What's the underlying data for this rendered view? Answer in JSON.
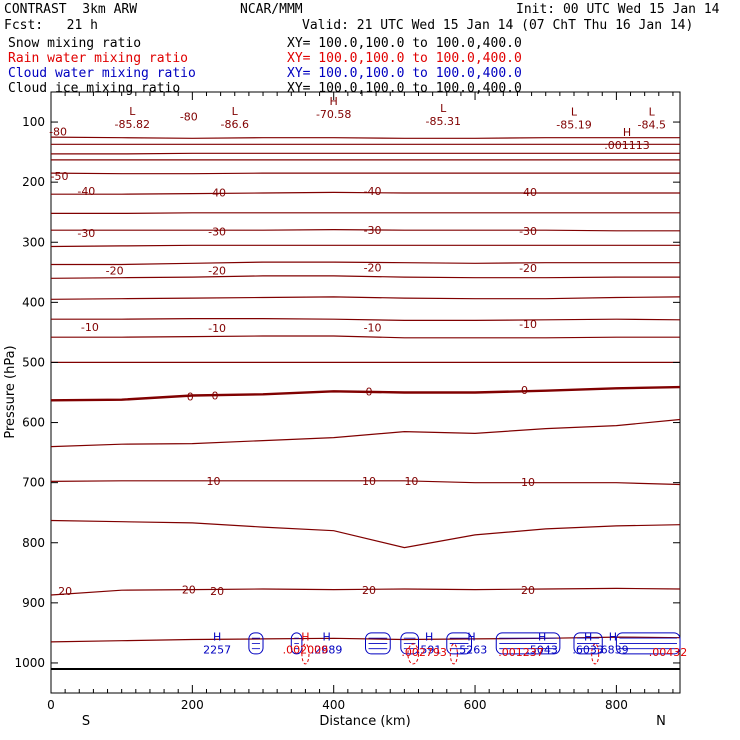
{
  "header": {
    "title_left": "CONTRAST  3km ARW",
    "center": "NCAR/MMM",
    "init": "Init: 00 UTC Wed 15 Jan 14",
    "fcst": "Fcst:   21 h",
    "valid": "Valid: 21 UTC Wed 15 Jan 14 (07 ChT Thu 16 Jan 14)"
  },
  "legend": [
    {
      "label": "Snow mixing ratio",
      "xy": "XY= 100.0,100.0 to 100.0,400.0",
      "color": "#000000"
    },
    {
      "label": "Rain water mixing ratio",
      "xy": "XY= 100.0,100.0 to 100.0,400.0",
      "color": "#e00000"
    },
    {
      "label": "Cloud water mixing ratio",
      "xy": "XY= 100.0,100.0 to 100.0,400.0",
      "color": "#0000c0"
    },
    {
      "label": "Cloud ice mixing ratio",
      "xy": "XY= 100.0,100.0 to 100.0,400.0",
      "color": "#000000"
    }
  ],
  "chart_data": {
    "type": "line",
    "title": "CONTRAST 3km ARW",
    "xlabel": "Distance (km)",
    "ylabel": "Pressure (hPa)",
    "xlim": [
      0,
      890
    ],
    "ylim": [
      1050,
      50
    ],
    "x_ticks": [
      0,
      200,
      400,
      600,
      800
    ],
    "y_ticks": [
      100,
      200,
      300,
      400,
      500,
      600,
      700,
      800,
      900,
      1000
    ],
    "direction_labels": {
      "left": "S",
      "right": "N"
    },
    "contour_color": "#800000",
    "cloud_color": "#0000c0",
    "rain_color": "#e00000",
    "isotherms": [
      {
        "x": [
          0,
          100,
          200,
          300,
          400,
          500,
          600,
          700,
          800,
          890
        ],
        "p": [
          125,
          126,
          127,
          126,
          126,
          127,
          127,
          126,
          126,
          126
        ]
      },
      {
        "x": [
          0,
          100,
          200,
          300,
          400,
          500,
          600,
          700,
          800,
          890
        ],
        "p": [
          137,
          137,
          137,
          137,
          137,
          137,
          137,
          137,
          137,
          137
        ]
      },
      {
        "x": [
          0,
          100,
          200,
          300,
          400,
          500,
          600,
          700,
          800,
          890
        ],
        "p": [
          153,
          153,
          152,
          152,
          152,
          152,
          152,
          152,
          152,
          152
        ]
      },
      {
        "x": [
          0,
          100,
          200,
          300,
          400,
          500,
          600,
          700,
          800,
          890
        ],
        "p": [
          163,
          163,
          163,
          163,
          163,
          163,
          163,
          163,
          163,
          163
        ]
      },
      {
        "x": [
          0,
          100,
          200,
          300,
          400,
          500,
          600,
          700,
          800,
          890
        ],
        "p": [
          185,
          186,
          186,
          185,
          185,
          185,
          185,
          185,
          185,
          185
        ]
      },
      {
        "x": [
          0,
          100,
          200,
          300,
          400,
          500,
          600,
          700,
          800,
          890
        ],
        "p": [
          220,
          220,
          219,
          218,
          217,
          218,
          218,
          218,
          218,
          218
        ]
      },
      {
        "x": [
          0,
          100,
          200,
          300,
          400,
          500,
          600,
          700,
          800,
          890
        ],
        "p": [
          252,
          252,
          251,
          251,
          251,
          251,
          251,
          251,
          251,
          251
        ]
      },
      {
        "x": [
          0,
          100,
          200,
          300,
          400,
          500,
          600,
          700,
          800,
          890
        ],
        "p": [
          280,
          280,
          280,
          280,
          279,
          280,
          280,
          280,
          281,
          281
        ]
      },
      {
        "x": [
          0,
          100,
          200,
          300,
          400,
          500,
          600,
          700,
          800,
          890
        ],
        "p": [
          307,
          306,
          305,
          305,
          305,
          305,
          305,
          305,
          305,
          305
        ]
      },
      {
        "x": [
          0,
          100,
          200,
          300,
          400,
          500,
          600,
          700,
          800,
          890
        ],
        "p": [
          337,
          337,
          335,
          333,
          333,
          334,
          335,
          334,
          334,
          334
        ]
      },
      {
        "x": [
          0,
          100,
          200,
          300,
          400,
          500,
          600,
          700,
          800,
          890
        ],
        "p": [
          360,
          359,
          358,
          356,
          356,
          358,
          359,
          359,
          358,
          358
        ]
      },
      {
        "x": [
          0,
          100,
          200,
          300,
          400,
          500,
          600,
          700,
          800,
          890
        ],
        "p": [
          395,
          394,
          393,
          392,
          391,
          393,
          394,
          394,
          392,
          391
        ]
      },
      {
        "x": [
          0,
          100,
          200,
          300,
          400,
          500,
          600,
          700,
          800,
          890
        ],
        "p": [
          428,
          428,
          427,
          427,
          428,
          430,
          430,
          429,
          428,
          429
        ]
      },
      {
        "x": [
          0,
          100,
          200,
          300,
          400,
          500,
          600,
          700,
          800,
          890
        ],
        "p": [
          458,
          458,
          457,
          456,
          456,
          459,
          459,
          459,
          458,
          458
        ]
      },
      {
        "x": [
          0,
          100,
          200,
          300,
          400,
          500,
          600,
          700,
          800,
          890
        ],
        "p": [
          500,
          500,
          500,
          500,
          500,
          500,
          500,
          500,
          500,
          500
        ]
      },
      {
        "x": [
          0,
          100,
          200,
          300,
          400,
          500,
          600,
          700,
          800,
          890
        ],
        "p": [
          563,
          562,
          555,
          553,
          548,
          550,
          550,
          547,
          543,
          541
        ]
      },
      {
        "x": [
          0,
          100,
          200,
          300,
          400,
          500,
          600,
          700,
          800,
          890
        ],
        "p": [
          640,
          636,
          635,
          630,
          625,
          615,
          618,
          610,
          605,
          595
        ]
      },
      {
        "x": [
          0,
          100,
          200,
          300,
          400,
          500,
          600,
          700,
          800,
          890
        ],
        "p": [
          698,
          697,
          697,
          697,
          697,
          697,
          700,
          700,
          700,
          703
        ]
      },
      {
        "x": [
          0,
          100,
          200,
          300,
          400,
          500,
          600,
          700,
          800,
          890
        ],
        "p": [
          763,
          765,
          767,
          774,
          780,
          808,
          787,
          777,
          772,
          770
        ]
      },
      {
        "x": [
          0,
          100,
          200,
          300,
          400,
          500,
          600,
          700,
          800,
          890
        ],
        "p": [
          887,
          879,
          878,
          877,
          878,
          877,
          878,
          877,
          876,
          877
        ]
      },
      {
        "x": [
          0,
          100,
          200,
          300,
          400,
          500,
          600,
          700,
          800,
          890
        ],
        "p": [
          965,
          963,
          961,
          960,
          959,
          961,
          960,
          959,
          957,
          958
        ]
      }
    ],
    "thick_zero_line": {
      "x": [
        0,
        100,
        200,
        300,
        400,
        500,
        600,
        700,
        800,
        890
      ],
      "p": [
        563,
        562,
        555,
        553,
        548,
        550,
        550,
        547,
        543,
        541
      ]
    },
    "surface_line_p": 1010,
    "contour_labels": [
      {
        "text": "-80",
        "x": 10,
        "p": 116
      },
      {
        "text": "-80",
        "x": 195,
        "p": 91
      },
      {
        "text": "-50",
        "x": 12,
        "p": 190
      },
      {
        "text": "-40",
        "x": 50,
        "p": 215
      },
      {
        "text": "-40",
        "x": 235,
        "p": 217
      },
      {
        "text": "-40",
        "x": 455,
        "p": 215
      },
      {
        "text": "-40",
        "x": 675,
        "p": 216
      },
      {
        "text": "-30",
        "x": 50,
        "p": 285
      },
      {
        "text": "-30",
        "x": 235,
        "p": 282
      },
      {
        "text": "-30",
        "x": 455,
        "p": 280
      },
      {
        "text": "-30",
        "x": 675,
        "p": 281
      },
      {
        "text": "-20",
        "x": 90,
        "p": 347
      },
      {
        "text": "-20",
        "x": 235,
        "p": 347
      },
      {
        "text": "-20",
        "x": 455,
        "p": 342
      },
      {
        "text": "-20",
        "x": 675,
        "p": 343
      },
      {
        "text": "-10",
        "x": 55,
        "p": 441
      },
      {
        "text": "-10",
        "x": 235,
        "p": 443
      },
      {
        "text": "-10",
        "x": 455,
        "p": 442
      },
      {
        "text": "-10",
        "x": 675,
        "p": 436
      },
      {
        "text": "0",
        "x": 197,
        "p": 557
      },
      {
        "text": "0",
        "x": 232,
        "p": 555
      },
      {
        "text": "0",
        "x": 450,
        "p": 548
      },
      {
        "text": "0",
        "x": 670,
        "p": 546
      },
      {
        "text": "10",
        "x": 230,
        "p": 697
      },
      {
        "text": "10",
        "x": 450,
        "p": 697
      },
      {
        "text": "10",
        "x": 510,
        "p": 697
      },
      {
        "text": "10",
        "x": 675,
        "p": 699
      },
      {
        "text": "20",
        "x": 20,
        "p": 880
      },
      {
        "text": "20",
        "x": 195,
        "p": 878
      },
      {
        "text": "20",
        "x": 235,
        "p": 880
      },
      {
        "text": "20",
        "x": 450,
        "p": 879
      },
      {
        "text": "20",
        "x": 675,
        "p": 879
      }
    ],
    "extrema": [
      {
        "letter": "L",
        "value": "-85.82",
        "x": 115,
        "p": 88
      },
      {
        "letter": "L",
        "value": "-86.6",
        "x": 260,
        "p": 88
      },
      {
        "letter": "H",
        "value": "-70.58",
        "x": 400,
        "p": 72
      },
      {
        "letter": "L",
        "value": "-85.31",
        "x": 555,
        "p": 83
      },
      {
        "letter": "L",
        "value": "-85.19",
        "x": 740,
        "p": 89
      },
      {
        "letter": "L",
        "value": "-84.5",
        "x": 850,
        "p": 89
      },
      {
        "letter": "H",
        "value": ".001113",
        "x": 815,
        "p": 123
      }
    ],
    "cloud_maxima": [
      {
        "letter": "H",
        "value": "2257",
        "x": 235,
        "p": 963
      },
      {
        "letter": "H",
        "value": ".2689",
        "x": 390,
        "p": 963
      },
      {
        "letter": "H",
        "value": ".591",
        "x": 535,
        "p": 963
      },
      {
        "letter": "H",
        "value": ".5263",
        "x": 595,
        "p": 963
      },
      {
        "letter": "H",
        "value": ".5043",
        "x": 695,
        "p": 963
      },
      {
        "letter": "H",
        "value": ".6033",
        "x": 760,
        "p": 963
      },
      {
        "letter": "H",
        "value": ".6839",
        "x": 795,
        "p": 963
      }
    ],
    "rain_maxima": [
      {
        "letter": "H",
        "value": ".002009",
        "x": 360,
        "p": 963
      },
      {
        "letter": "",
        "value": ".002793",
        "x": 528,
        "p": 982
      },
      {
        "letter": "",
        "value": ".001237",
        "x": 665,
        "p": 982
      },
      {
        "letter": "",
        "value": ".00432",
        "x": 873,
        "p": 982
      }
    ],
    "cloud_blobs": [
      {
        "x0": 280,
        "x1": 300
      },
      {
        "x0": 340,
        "x1": 355
      },
      {
        "x0": 445,
        "x1": 480
      },
      {
        "x0": 495,
        "x1": 520
      },
      {
        "x0": 560,
        "x1": 595
      },
      {
        "x0": 630,
        "x1": 720
      },
      {
        "x0": 740,
        "x1": 780
      },
      {
        "x0": 800,
        "x1": 890
      }
    ],
    "rain_blobs": [
      {
        "x0": 355,
        "x1": 365
      },
      {
        "x0": 505,
        "x1": 520
      },
      {
        "x0": 565,
        "x1": 575
      },
      {
        "x0": 765,
        "x1": 775
      }
    ]
  }
}
